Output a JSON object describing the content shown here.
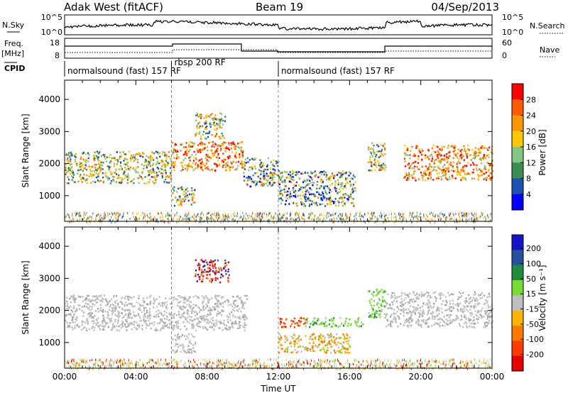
{
  "header": {
    "station": "Adak West (fitACF)",
    "beam": "Beam 19",
    "date": "04/Sep/2013"
  },
  "panels": {
    "nsky_label": "N.Sky",
    "nsky_ticks": [
      "10^5",
      "10^0"
    ],
    "nsearch_label": "N.Search",
    "nsearch_ticks": [
      "10^5",
      "10^0"
    ],
    "freq_label": "Freq.",
    "freq_unit": "[MHz]",
    "freq_ticks": [
      "18",
      "8"
    ],
    "nave_label": "Nave",
    "nave_ticks": [
      "60",
      "0"
    ],
    "cpid_label": "CPID",
    "cpid_segments": [
      {
        "label": "normalsound (fast) 157 RF",
        "start_hour": 0,
        "end_hour": 6
      },
      {
        "label": "rbsp 200 RF",
        "start_hour": 6,
        "end_hour": 12
      },
      {
        "label": "normalsound (fast) 157 RF",
        "start_hour": 12,
        "end_hour": 24
      }
    ]
  },
  "colorbars": {
    "power_label": "Power [dB]",
    "power_ticks": [
      "28",
      "24",
      "20",
      "16",
      "12",
      "8",
      "4"
    ],
    "power_colors": [
      "#ff0000",
      "#ff5a00",
      "#ff9600",
      "#ffc800",
      "#82c882",
      "#3c8c50",
      "#1e50b4",
      "#0000ff"
    ],
    "velocity_label": "Velocity [m s⁻¹]",
    "velocity_ticks": [
      "200",
      "100",
      "50",
      "15",
      "-15",
      "-50",
      "-100",
      "-200"
    ],
    "velocity_colors": [
      "#1414c8",
      "#2850a0",
      "#1e8c3c",
      "#78dc32",
      "#bebebe",
      "#ffb400",
      "#ff7800",
      "#ff3c00",
      "#e60000"
    ]
  },
  "chart_data": [
    {
      "type": "heatmap",
      "title": "Power",
      "ylabel": "Slant Range [km]",
      "ylim": [
        200,
        4600
      ],
      "xlim": [
        0,
        24
      ],
      "yticks": [
        "4000",
        "3000",
        "2000",
        "1000"
      ],
      "regions": [
        {
          "t0": 0,
          "t1": 6,
          "r0": 1400,
          "r1": 2400,
          "level": "mid"
        },
        {
          "t0": 6,
          "t1": 10,
          "r0": 1800,
          "r1": 2700,
          "level": "high"
        },
        {
          "t0": 7.3,
          "t1": 9,
          "r0": 2800,
          "r1": 3600,
          "level": "mid"
        },
        {
          "t0": 6,
          "t1": 7.3,
          "r0": 700,
          "r1": 1300,
          "level": "mid"
        },
        {
          "t0": 10,
          "t1": 12,
          "r0": 1300,
          "r1": 2200,
          "level": "low"
        },
        {
          "t0": 12,
          "t1": 16.3,
          "r0": 700,
          "r1": 1800,
          "level": "low"
        },
        {
          "t0": 17,
          "t1": 18,
          "r0": 1800,
          "r1": 2700,
          "level": "mid"
        },
        {
          "t0": 19,
          "t1": 24,
          "r0": 1500,
          "r1": 2600,
          "level": "high"
        }
      ]
    },
    {
      "type": "heatmap",
      "title": "Velocity",
      "ylabel": "Slant Range [km]",
      "ylim": [
        200,
        4600
      ],
      "xlim": [
        0,
        24
      ],
      "yticks": [
        "4000",
        "3000",
        "2000",
        "1000"
      ],
      "regions": [
        {
          "t0": 0,
          "t1": 10.2,
          "r0": 1400,
          "r1": 2500,
          "level": "ground"
        },
        {
          "t0": 7.3,
          "t1": 9.2,
          "r0": 2900,
          "r1": 3600,
          "level": "towards"
        },
        {
          "t0": 6,
          "t1": 7.3,
          "r0": 700,
          "r1": 1300,
          "level": "ground"
        },
        {
          "t0": 12,
          "t1": 13.5,
          "r0": 1500,
          "r1": 1800,
          "level": "away"
        },
        {
          "t0": 13.5,
          "t1": 16.8,
          "r0": 1500,
          "r1": 1800,
          "level": "slow"
        },
        {
          "t0": 12,
          "t1": 16,
          "r0": 700,
          "r1": 1300,
          "level": "mixed"
        },
        {
          "t0": 17,
          "t1": 18,
          "r0": 1800,
          "r1": 2700,
          "level": "slow"
        },
        {
          "t0": 18,
          "t1": 24,
          "r0": 1500,
          "r1": 2600,
          "level": "ground"
        }
      ]
    }
  ],
  "xaxis": {
    "ticks": [
      "00:00",
      "04:00",
      "08:00",
      "12:00",
      "16:00",
      "20:00",
      "00:00"
    ],
    "label": "Time UT"
  }
}
